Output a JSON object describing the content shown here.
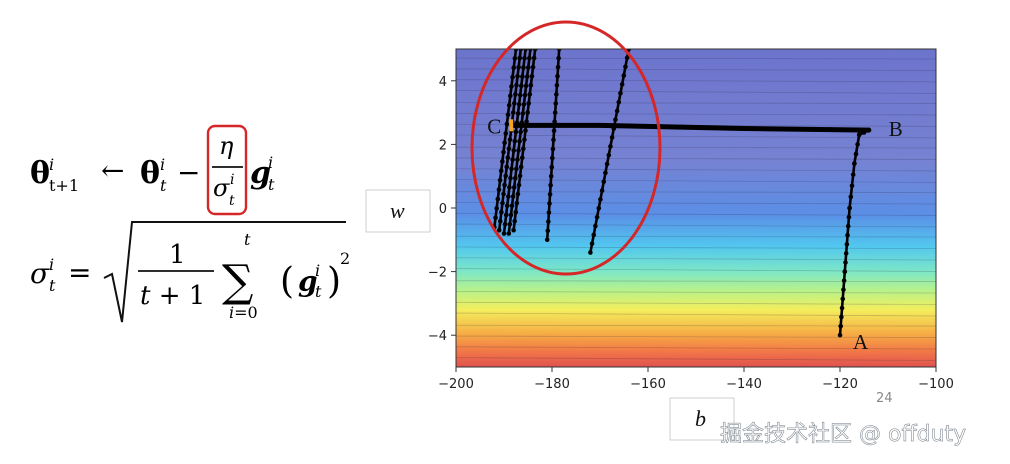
{
  "formula": {
    "update_rule_tex": "θ^i_{t+1} ← θ^i_t − (η / σ^i_t) g^i_t",
    "sigma_rule_tex": "σ^i_t = sqrt( 1/(t+1) · Σ_{i=0}^{t} (g^i_t)^2 )",
    "highlight_color": "#d62728"
  },
  "chart_data": {
    "type": "contour",
    "xlabel": "b",
    "ylabel": "w",
    "xlim": [
      -200,
      -100
    ],
    "ylim": [
      -5,
      5
    ],
    "xticks": [
      -200,
      -180,
      -160,
      -140,
      -120,
      -100
    ],
    "yticks": [
      -4,
      -2,
      0,
      2,
      4
    ],
    "xtick_labels": [
      "−200",
      "−180",
      "−160",
      "−140",
      "−120",
      "−100"
    ],
    "ytick_labels": [
      "−4",
      "−2",
      "0",
      "2",
      "4"
    ],
    "colormap": "jet",
    "grid": false,
    "points": [
      {
        "label": "A",
        "x": -120,
        "y": -4
      },
      {
        "label": "B",
        "x": -114,
        "y": 2.45
      },
      {
        "label": "C",
        "x": -188.5,
        "y": 2.6
      }
    ],
    "series": [
      {
        "values": [
          [
            -120,
            -4
          ],
          [
            -119,
            -2
          ],
          [
            -118,
            0
          ],
          [
            -117,
            1.4
          ],
          [
            -116,
            2.3
          ],
          [
            -114,
            2.45
          ]
        ]
      },
      {
        "values": [
          [
            -114,
            2.45
          ],
          [
            -140,
            2.5
          ],
          [
            -170,
            2.6
          ],
          [
            -188.5,
            2.6
          ]
        ]
      },
      {
        "values": [
          [
            -192,
            -0.6
          ],
          [
            -187.5,
            5
          ]
        ]
      },
      {
        "values": [
          [
            -191,
            -0.7
          ],
          [
            -186.5,
            5
          ]
        ]
      },
      {
        "values": [
          [
            -190,
            -0.8
          ],
          [
            -185.5,
            5
          ]
        ]
      },
      {
        "values": [
          [
            -189,
            -0.8
          ],
          [
            -184.5,
            5
          ]
        ]
      },
      {
        "values": [
          [
            -188,
            -0.7
          ],
          [
            -183.5,
            5
          ]
        ]
      },
      {
        "values": [
          [
            -181,
            -1.0
          ],
          [
            -178.5,
            5
          ]
        ]
      },
      {
        "values": [
          [
            -172,
            -1.4
          ],
          [
            -164,
            5
          ]
        ]
      }
    ],
    "highlight_ellipse_color": "#d62728",
    "page_number": "24"
  },
  "watermark": "掘金技术社区 @ offduty"
}
